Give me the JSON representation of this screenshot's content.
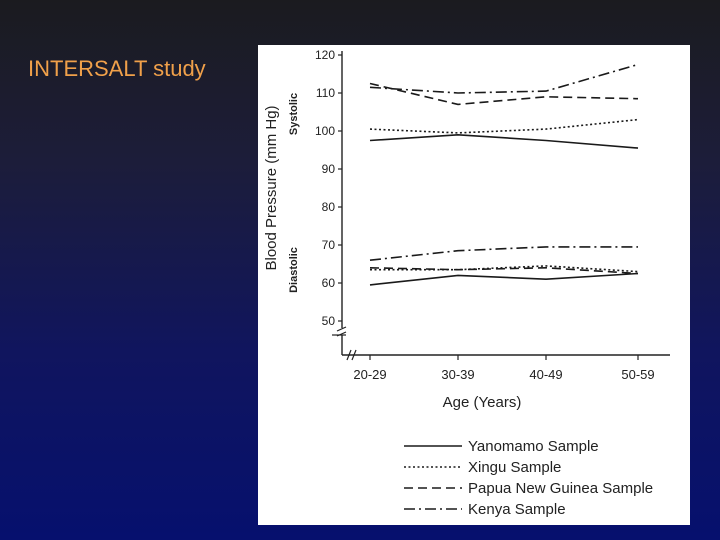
{
  "slide": {
    "title": "INTERSALT study"
  },
  "chart_data": {
    "type": "line",
    "ylabel": "Blood Pressure (mm Hg)",
    "xlabel": "Age (Years)",
    "section_labels": {
      "systolic": "Systolic",
      "diastolic": "Diastolic"
    },
    "categories": [
      "20-29",
      "30-39",
      "40-49",
      "50-59"
    ],
    "ylim": [
      50,
      120
    ],
    "yticks": [
      50,
      60,
      70,
      80,
      90,
      100,
      110,
      120
    ],
    "grid": false,
    "legend_position": "bottom",
    "series": [
      {
        "name": "Yanomamo Sample",
        "style": "solid",
        "systolic": [
          97.5,
          99,
          97.5,
          95.5
        ],
        "diastolic": [
          59.5,
          62,
          61,
          62.5
        ]
      },
      {
        "name": "Xingu Sample",
        "style": "dotted",
        "systolic": [
          100.5,
          99.5,
          100.5,
          103
        ],
        "diastolic": [
          63.5,
          63.5,
          64.5,
          63
        ]
      },
      {
        "name": "Papua New Guinea Sample",
        "style": "dashed",
        "systolic": [
          112.5,
          107,
          109,
          108.5
        ],
        "diastolic": [
          64,
          63.5,
          64,
          62.5
        ]
      },
      {
        "name": "Kenya Sample",
        "style": "dashdot",
        "systolic": [
          111.5,
          110,
          110.5,
          117.5
        ],
        "diastolic": [
          66,
          68.5,
          69.5,
          69.5
        ]
      }
    ],
    "legend_labels": [
      "Yanomamo Sample",
      "Xingu Sample",
      "Papua New Guinea Sample",
      "Kenya Sample"
    ]
  }
}
